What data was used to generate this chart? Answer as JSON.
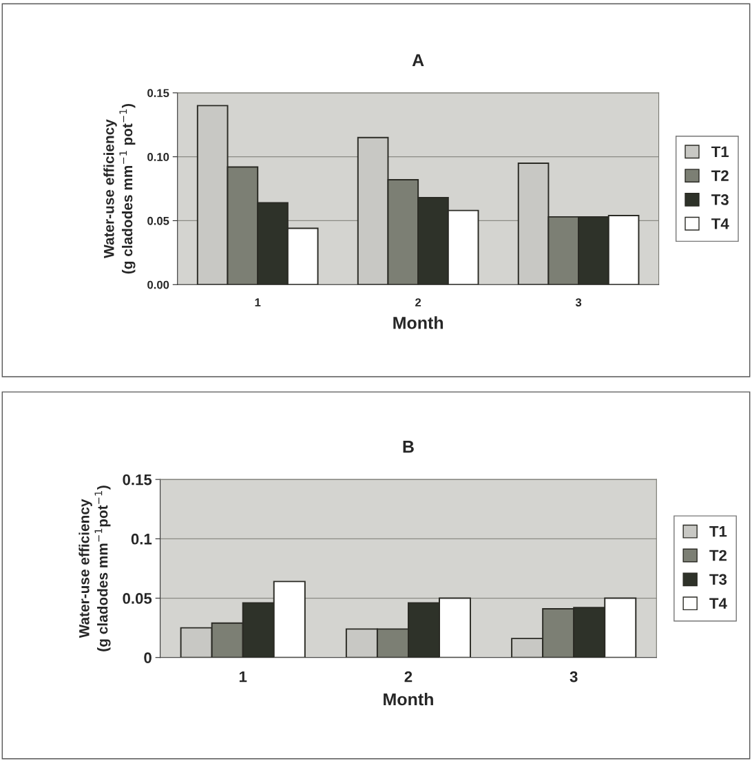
{
  "chart_data": [
    {
      "type": "bar",
      "title": "A",
      "xlabel": "Month",
      "ylabel": "Water-use efficiency\n(g cladodes mm$^{−1}$ pot$^{−1}$)",
      "categories": [
        "1",
        "2",
        "3"
      ],
      "series": [
        {
          "name": "T1",
          "color": "#c8c8c4",
          "values": [
            0.14,
            0.115,
            0.095
          ]
        },
        {
          "name": "T2",
          "color": "#7c7f74",
          "values": [
            0.092,
            0.082,
            0.053
          ]
        },
        {
          "name": "T3",
          "color": "#2e3229",
          "values": [
            0.064,
            0.068,
            0.053
          ]
        },
        {
          "name": "T4",
          "color": "#ffffff",
          "values": [
            0.044,
            0.058,
            0.054
          ]
        }
      ],
      "ylim": [
        0,
        0.15
      ],
      "yticks": [
        {
          "value": 0,
          "label": "0.00"
        },
        {
          "value": 0.05,
          "label": "0.05"
        },
        {
          "value": 0.1,
          "label": "0.10"
        },
        {
          "value": 0.15,
          "label": "0.15"
        }
      ],
      "grid": "y",
      "legend": "right"
    },
    {
      "type": "bar",
      "title": "B",
      "xlabel": "Month",
      "ylabel": "Water-use efficiency\n(g cladodes mm$^{−1}$pot$^{−1}$)",
      "categories": [
        "1",
        "2",
        "3"
      ],
      "series": [
        {
          "name": "T1",
          "color": "#c8c8c4",
          "values": [
            0.025,
            0.024,
            0.016
          ]
        },
        {
          "name": "T2",
          "color": "#7c7f74",
          "values": [
            0.029,
            0.024,
            0.041
          ]
        },
        {
          "name": "T3",
          "color": "#2e3229",
          "values": [
            0.046,
            0.046,
            0.042
          ]
        },
        {
          "name": "T4",
          "color": "#ffffff",
          "values": [
            0.064,
            0.05,
            0.05
          ]
        }
      ],
      "ylim": [
        0,
        0.15
      ],
      "yticks": [
        0,
        0.05,
        0.1,
        0.15
      ],
      "grid": "y",
      "legend": "right"
    }
  ]
}
